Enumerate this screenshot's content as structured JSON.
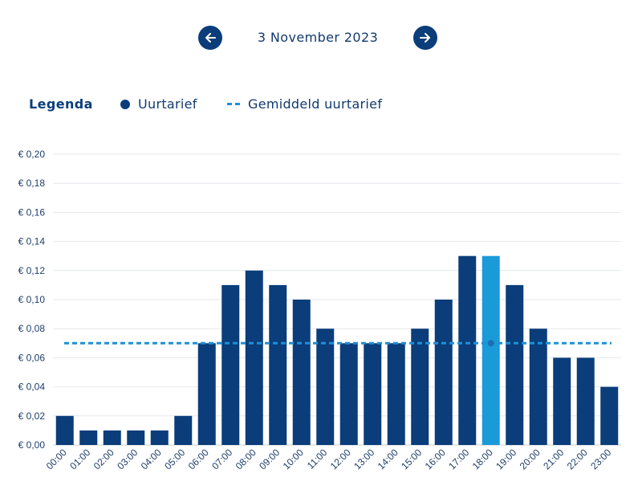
{
  "header": {
    "date": "3 November 2023",
    "prev_icon": "arrow-left-icon",
    "next_icon": "arrow-right-icon"
  },
  "legend": {
    "title": "Legenda",
    "items": [
      {
        "label": "Uurtarief",
        "icon": "dot",
        "color": "#0a3d7a"
      },
      {
        "label": "Gemiddeld uurtarief",
        "icon": "dashed-line",
        "color": "#1e90d6"
      }
    ]
  },
  "colors": {
    "bar": "#0a3d7a",
    "bar_highlight": "#1a9ad9",
    "average_line": "#1e90d6",
    "grid": "#e4e7ec",
    "axis_text": "#1d3f6b"
  },
  "chart_data": {
    "type": "bar",
    "categories": [
      "00:00",
      "01:00",
      "02:00",
      "03:00",
      "04:00",
      "05:00",
      "06:00",
      "07:00",
      "08:00",
      "09:00",
      "10:00",
      "11:00",
      "12:00",
      "13:00",
      "14:00",
      "15:00",
      "16:00",
      "17:00",
      "18:00",
      "19:00",
      "20:00",
      "21:00",
      "22:00",
      "23:00"
    ],
    "series": [
      {
        "name": "Uurtarief",
        "values": [
          0.02,
          0.01,
          0.01,
          0.01,
          0.01,
          0.02,
          0.07,
          0.11,
          0.12,
          0.11,
          0.1,
          0.08,
          0.07,
          0.07,
          0.07,
          0.08,
          0.1,
          0.13,
          0.13,
          0.11,
          0.08,
          0.06,
          0.06,
          0.04
        ]
      }
    ],
    "average": {
      "name": "Gemiddeld uurtarief",
      "value": 0.07
    },
    "highlighted_category": "18:00",
    "ylim": [
      0,
      0.2
    ],
    "yticks": [
      0,
      0.02,
      0.04,
      0.06,
      0.08,
      0.1,
      0.12,
      0.14,
      0.16,
      0.18,
      0.2
    ],
    "ytick_labels": [
      "€ 0,00",
      "€ 0,02",
      "€ 0,04",
      "€ 0,06",
      "€ 0,08",
      "€ 0,10",
      "€ 0,12",
      "€ 0,14",
      "€ 0,16",
      "€ 0,18",
      "€ 0,20"
    ],
    "grid": true,
    "xlabel": "",
    "ylabel": ""
  }
}
